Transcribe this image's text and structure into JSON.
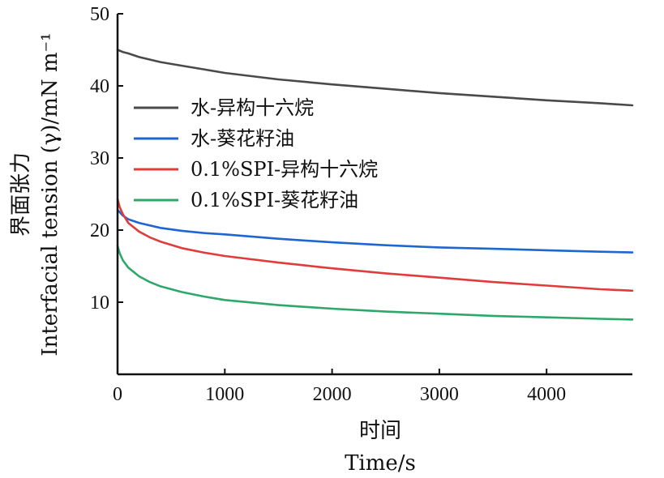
{
  "chart_data": {
    "type": "line",
    "xlabel_cn": "时间",
    "xlabel": "Time/s",
    "ylabel_cn": "界面张力",
    "ylabel": "Interfacial tension (γ)/mN m⁻¹",
    "xlim": [
      0,
      4800
    ],
    "ylim": [
      0,
      50
    ],
    "xticks": [
      0,
      1000,
      2000,
      3000,
      4000
    ],
    "yticks": [
      10,
      20,
      30,
      40,
      50
    ],
    "legend_position": "upper-left",
    "series": [
      {
        "name": "水-异构十六烷",
        "color": "#4a4a4a",
        "x": [
          0,
          50,
          100,
          200,
          400,
          600,
          800,
          1000,
          1500,
          2000,
          2500,
          3000,
          3500,
          4000,
          4500,
          4800
        ],
        "y": [
          45.0,
          44.7,
          44.5,
          44.0,
          43.3,
          42.8,
          42.3,
          41.8,
          40.9,
          40.2,
          39.6,
          39.0,
          38.5,
          38.0,
          37.6,
          37.3
        ]
      },
      {
        "name": "水-葵花籽油",
        "color": "#1f66d1",
        "x": [
          0,
          20,
          50,
          100,
          200,
          400,
          600,
          800,
          1000,
          1500,
          2000,
          2500,
          3000,
          3500,
          4000,
          4500,
          4800
        ],
        "y": [
          22.8,
          22.5,
          22.0,
          21.5,
          21.0,
          20.3,
          19.9,
          19.6,
          19.4,
          18.8,
          18.3,
          17.9,
          17.6,
          17.4,
          17.2,
          17.0,
          16.9
        ]
      },
      {
        "name": "0.1%SPI-异构十六烷",
        "color": "#e03c3c",
        "x": [
          0,
          20,
          50,
          100,
          200,
          300,
          400,
          600,
          800,
          1000,
          1500,
          2000,
          2500,
          3000,
          3500,
          4000,
          4500,
          4800
        ],
        "y": [
          24.3,
          23.2,
          22.2,
          21.0,
          19.8,
          19.0,
          18.4,
          17.5,
          16.9,
          16.4,
          15.5,
          14.7,
          14.0,
          13.4,
          12.8,
          12.3,
          11.8,
          11.6
        ]
      },
      {
        "name": "0.1%SPI-葵花籽油",
        "color": "#2ea86a",
        "x": [
          0,
          20,
          50,
          100,
          200,
          300,
          400,
          600,
          800,
          1000,
          1500,
          2000,
          2500,
          3000,
          3500,
          4000,
          4500,
          4800
        ],
        "y": [
          17.8,
          16.8,
          15.8,
          14.8,
          13.6,
          12.8,
          12.2,
          11.4,
          10.8,
          10.3,
          9.6,
          9.1,
          8.7,
          8.4,
          8.1,
          7.9,
          7.7,
          7.6
        ]
      }
    ]
  }
}
